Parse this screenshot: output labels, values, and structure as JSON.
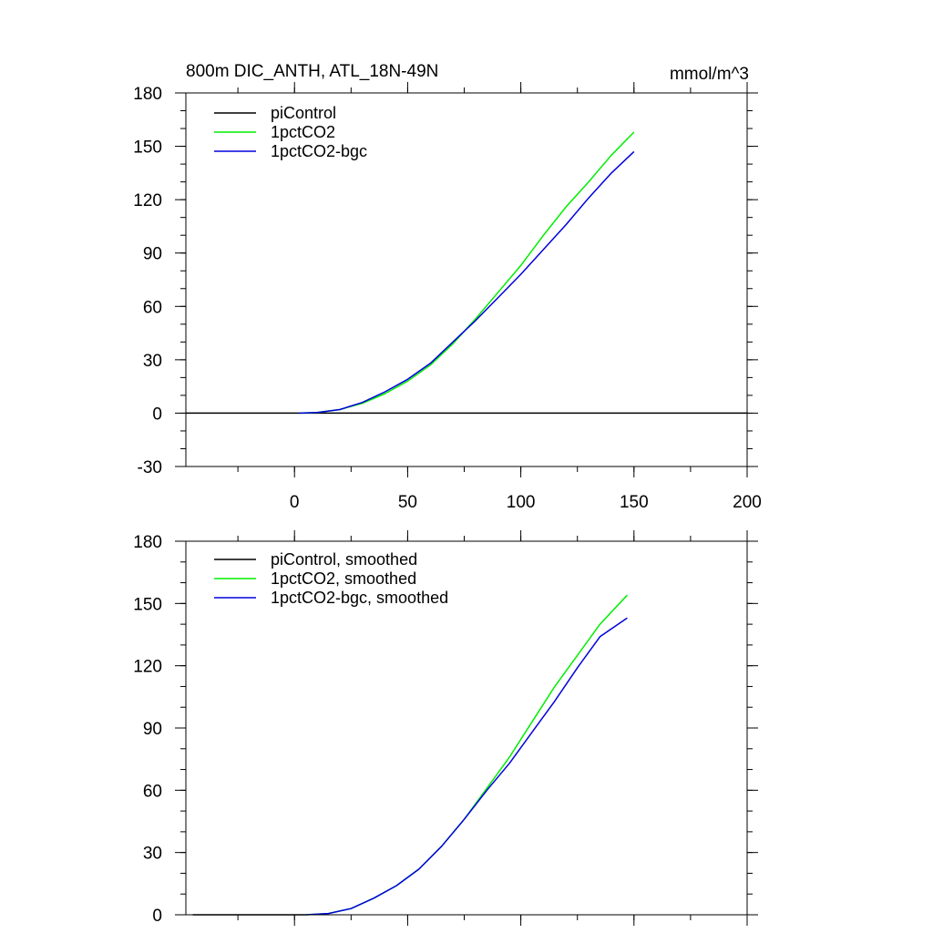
{
  "chart_data": [
    {
      "type": "line",
      "title": "800m DIC_ANTH, ATL_18N-49N",
      "units": "mmol/m^3",
      "xlim": [
        -48,
        200
      ],
      "ylim": [
        -30,
        180
      ],
      "xticks": [
        0,
        50,
        100,
        150,
        200
      ],
      "xtick_labels": [
        "0",
        "50",
        "100",
        "150",
        "200"
      ],
      "yticks": [
        -30,
        0,
        30,
        60,
        90,
        120,
        150,
        180
      ],
      "ytick_labels": [
        "-30",
        "0",
        "30",
        "60",
        "90",
        "120",
        "150",
        "180"
      ],
      "grid": false,
      "legend_position": "top-left",
      "series": [
        {
          "name": "piControl",
          "color": "#000000",
          "points": [
            [
              -48,
              0
            ],
            [
              200,
              0
            ]
          ]
        },
        {
          "name": "1pctCO2",
          "color": "#00ee00",
          "points": [
            [
              2,
              0
            ],
            [
              10,
              0.3
            ],
            [
              20,
              2
            ],
            [
              30,
              5.5
            ],
            [
              40,
              11
            ],
            [
              50,
              18
            ],
            [
              60,
              27
            ],
            [
              70,
              39
            ],
            [
              80,
              53
            ],
            [
              90,
              68
            ],
            [
              100,
              83
            ],
            [
              110,
              100
            ],
            [
              120,
              116
            ],
            [
              130,
              130
            ],
            [
              140,
              145
            ],
            [
              150,
              158
            ]
          ]
        },
        {
          "name": "1pctCO2-bgc",
          "color": "#0000dd",
          "points": [
            [
              2,
              0
            ],
            [
              10,
              0.3
            ],
            [
              20,
              2
            ],
            [
              30,
              6
            ],
            [
              40,
              12
            ],
            [
              50,
              19
            ],
            [
              60,
              28
            ],
            [
              70,
              40
            ],
            [
              80,
              52
            ],
            [
              90,
              65
            ],
            [
              100,
              78
            ],
            [
              110,
              92
            ],
            [
              120,
              106
            ],
            [
              130,
              121
            ],
            [
              140,
              135
            ],
            [
              150,
              147
            ]
          ]
        }
      ]
    },
    {
      "type": "line",
      "xlim": [
        -48,
        200
      ],
      "ylim": [
        0,
        180
      ],
      "xticks": [
        0,
        50,
        100,
        150,
        200
      ],
      "yticks": [
        0,
        30,
        60,
        90,
        120,
        150,
        180
      ],
      "ytick_labels": [
        "0",
        "30",
        "60",
        "90",
        "120",
        "150",
        "180"
      ],
      "grid": false,
      "legend_position": "top-left",
      "series": [
        {
          "name": "piControl, smoothed",
          "color": "#000000",
          "points": [
            [
              -45,
              0
            ],
            [
              5,
              0
            ]
          ]
        },
        {
          "name": "1pctCO2, smoothed",
          "color": "#00ee00",
          "points": [
            [
              5,
              0
            ],
            [
              15,
              0.6
            ],
            [
              25,
              3
            ],
            [
              35,
              8
            ],
            [
              45,
              14
            ],
            [
              55,
              22
            ],
            [
              65,
              33
            ],
            [
              75,
              46
            ],
            [
              85,
              61
            ],
            [
              95,
              76
            ],
            [
              105,
              93
            ],
            [
              115,
              110
            ],
            [
              125,
              125
            ],
            [
              135,
              140
            ],
            [
              147,
              154
            ]
          ]
        },
        {
          "name": "1pctCO2-bgc, smoothed",
          "color": "#0000dd",
          "points": [
            [
              5,
              0
            ],
            [
              15,
              0.6
            ],
            [
              25,
              3
            ],
            [
              35,
              8
            ],
            [
              45,
              14
            ],
            [
              55,
              22
            ],
            [
              65,
              33
            ],
            [
              75,
              46
            ],
            [
              85,
              60
            ],
            [
              95,
              73
            ],
            [
              105,
              88
            ],
            [
              115,
              103
            ],
            [
              125,
              119
            ],
            [
              135,
              134
            ],
            [
              147,
              143
            ]
          ]
        }
      ]
    }
  ]
}
